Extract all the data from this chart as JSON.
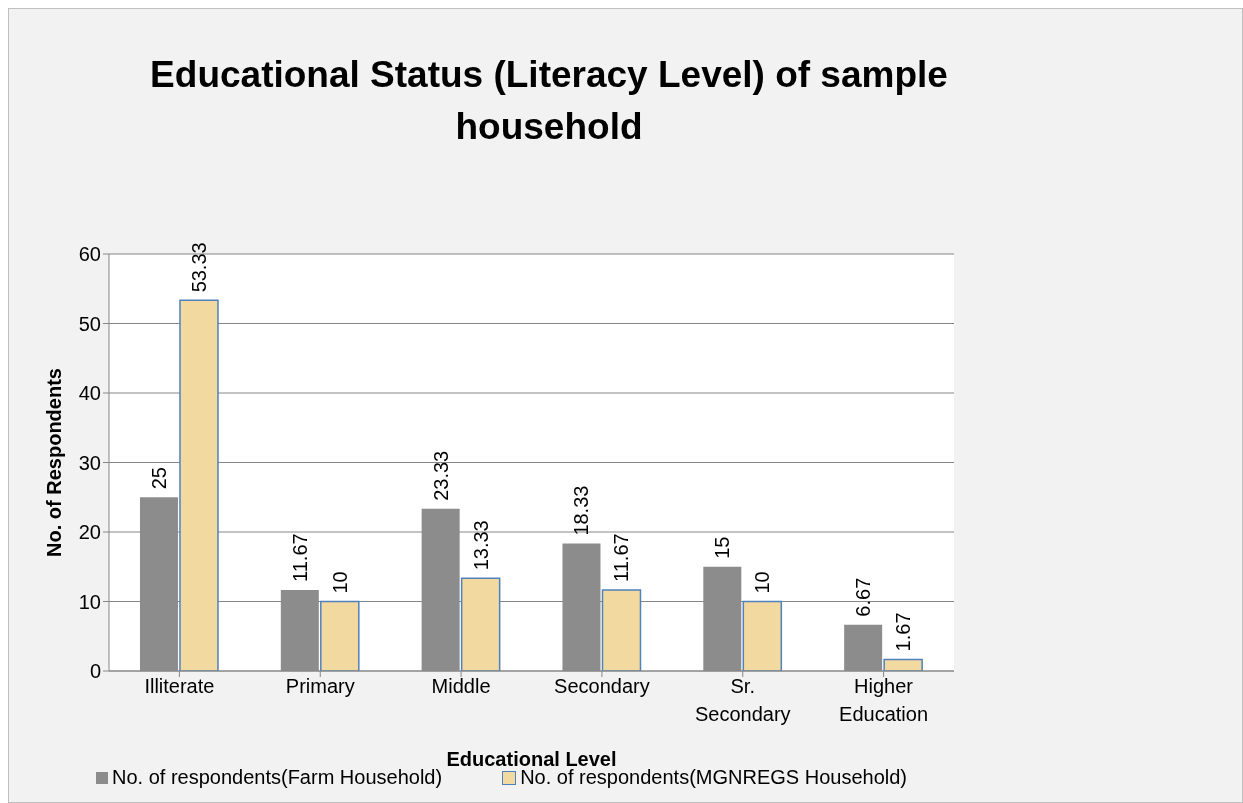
{
  "chart_data": {
    "type": "bar",
    "title": "Educational Status (Literacy Level) of sample household",
    "xlabel": "Educational Level",
    "ylabel": "No. of Respondents",
    "categories": [
      "Illiterate",
      "Primary",
      "Middle",
      "Secondary",
      "Sr. Secondary",
      "Higher Education"
    ],
    "series": [
      {
        "name": "No. of respondents(Farm Household)",
        "color": "#8c8c8c",
        "values": [
          25,
          11.67,
          23.33,
          18.33,
          15,
          6.67
        ]
      },
      {
        "name": "No. of respondents(MGNREGS Household)",
        "color": "#f2d9a0",
        "values": [
          53.33,
          10,
          13.33,
          11.67,
          10,
          1.67
        ]
      }
    ],
    "ylim": [
      0,
      60
    ],
    "yticks": [
      0,
      10,
      20,
      30,
      40,
      50,
      60
    ],
    "grid": "y",
    "legend": "bottom",
    "data_labels": true
  }
}
